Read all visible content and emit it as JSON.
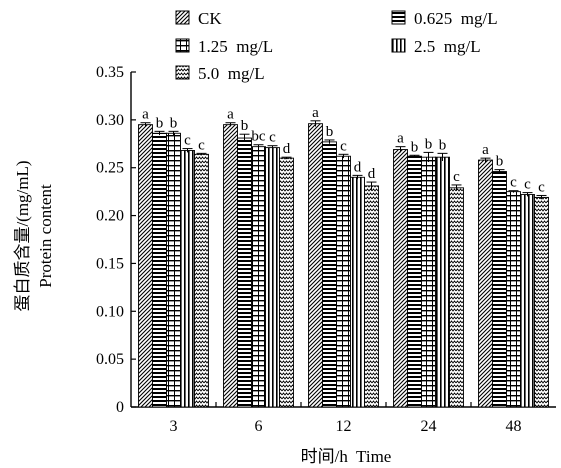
{
  "chart_data": {
    "type": "bar",
    "xlabel": "时间/h  Time",
    "ylabel_cn": "蛋白质含量/(mg/mL)",
    "ylabel_en": "Protein content",
    "categories": [
      "3",
      "6",
      "12",
      "24",
      "48"
    ],
    "ylim": [
      0,
      0.35
    ],
    "yticks": [
      "0",
      "0.05",
      "0.10",
      "0.15",
      "0.20",
      "0.25",
      "0.30",
      "0.35"
    ],
    "grid": false,
    "legend_position": "top",
    "series": [
      {
        "name": "CK",
        "pattern": "diag",
        "values": [
          0.295,
          0.295,
          0.296,
          0.269,
          0.258
        ],
        "errors": [
          0.002,
          0.002,
          0.003,
          0.003,
          0.002
        ],
        "labels": [
          "a",
          "a",
          "a",
          "a",
          "a"
        ]
      },
      {
        "name": "0.625  mg/L",
        "pattern": "hlines",
        "values": [
          0.286,
          0.281,
          0.277,
          0.262,
          0.246
        ],
        "errors": [
          0.002,
          0.004,
          0.002,
          0.001,
          0.002
        ],
        "labels": [
          "b",
          "b",
          "b",
          "b",
          "b"
        ]
      },
      {
        "name": "1.25  mg/L",
        "pattern": "hlines2",
        "values": [
          0.286,
          0.272,
          0.262,
          0.261,
          0.225
        ],
        "errors": [
          0.002,
          0.002,
          0.002,
          0.005,
          0.001
        ],
        "labels": [
          "b",
          "bc",
          "c",
          "b",
          "c"
        ]
      },
      {
        "name": "2.5  mg/L",
        "pattern": "vlines",
        "values": [
          0.268,
          0.271,
          0.24,
          0.261,
          0.222
        ],
        "errors": [
          0.002,
          0.002,
          0.002,
          0.004,
          0.002
        ],
        "labels": [
          "c",
          "c",
          "d",
          "b",
          "c"
        ]
      },
      {
        "name": "5.0  mg/L",
        "pattern": "zigzag",
        "values": [
          0.264,
          0.26,
          0.231,
          0.229,
          0.219
        ],
        "errors": [
          0.001,
          0.001,
          0.004,
          0.003,
          0.002
        ],
        "labels": [
          "c",
          "d",
          "d",
          "c",
          "c"
        ]
      }
    ]
  }
}
